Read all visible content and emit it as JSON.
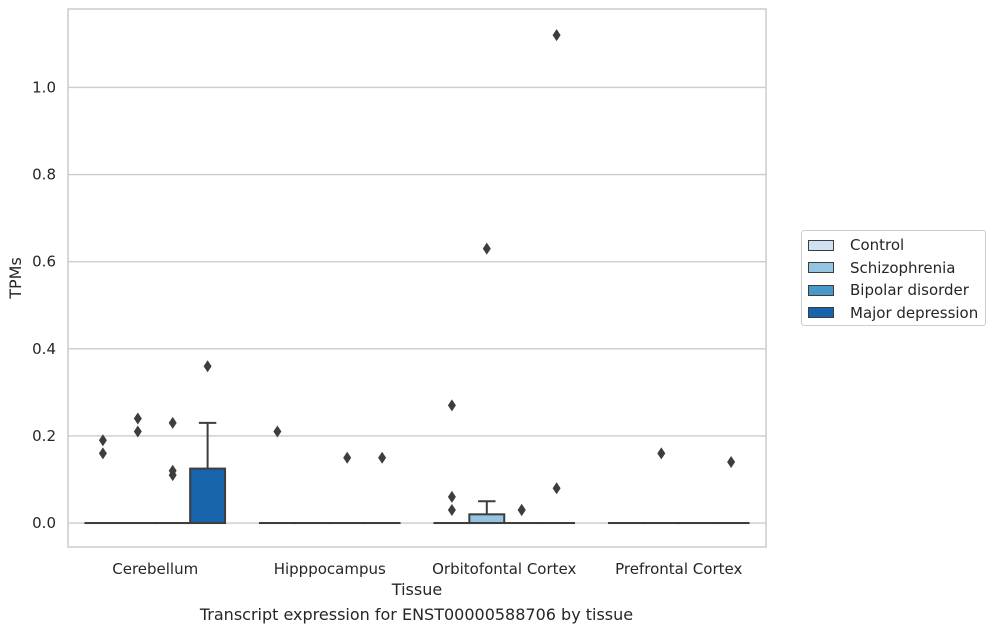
{
  "chart_data": {
    "type": "box",
    "xlabel": "Tissue",
    "ylabel": "TPMs",
    "caption": "Transcript expression for ENST00000588706 by tissue",
    "ylim": [
      -0.055,
      1.18
    ],
    "yticks": [
      0.0,
      0.2,
      0.4,
      0.6,
      0.8,
      1.0
    ],
    "ytick_labels": [
      "0.0",
      "0.2",
      "0.4",
      "0.6",
      "0.8",
      "1.0"
    ],
    "grid": "horizontal",
    "legend_position": "right",
    "categories": [
      "Cerebellum",
      "Hipppocampus",
      "Orbitofontal Cortex",
      "Prefrontal Cortex"
    ],
    "series": [
      {
        "name": "Control",
        "color": "#d0e1f2",
        "boxes": [
          {
            "category": "Cerebellum",
            "q1": 0.0,
            "median": 0.0,
            "q3": 0.0,
            "whisker_low": 0.0,
            "whisker_high": 0.0,
            "outliers": [
              0.19,
              0.16
            ]
          },
          {
            "category": "Hipppocampus",
            "q1": 0.0,
            "median": 0.0,
            "q3": 0.0,
            "whisker_low": 0.0,
            "whisker_high": 0.0,
            "outliers": [
              0.21
            ]
          },
          {
            "category": "Orbitofontal Cortex",
            "q1": 0.0,
            "median": 0.0,
            "q3": 0.0,
            "whisker_low": 0.0,
            "whisker_high": 0.0,
            "outliers": [
              0.27,
              0.06,
              0.03
            ]
          },
          {
            "category": "Prefrontal Cortex",
            "q1": 0.0,
            "median": 0.0,
            "q3": 0.0,
            "whisker_low": 0.0,
            "whisker_high": 0.0,
            "outliers": []
          }
        ]
      },
      {
        "name": "Schizophrenia",
        "color": "#94c4df",
        "boxes": [
          {
            "category": "Cerebellum",
            "q1": 0.0,
            "median": 0.0,
            "q3": 0.0,
            "whisker_low": 0.0,
            "whisker_high": 0.0,
            "outliers": [
              0.24,
              0.21
            ]
          },
          {
            "category": "Hipppocampus",
            "q1": 0.0,
            "median": 0.0,
            "q3": 0.0,
            "whisker_low": 0.0,
            "whisker_high": 0.0,
            "outliers": []
          },
          {
            "category": "Orbitofontal Cortex",
            "q1": 0.0,
            "median": 0.0,
            "q3": 0.02,
            "whisker_low": 0.0,
            "whisker_high": 0.05,
            "outliers": [
              0.63
            ]
          },
          {
            "category": "Prefrontal Cortex",
            "q1": 0.0,
            "median": 0.0,
            "q3": 0.0,
            "whisker_low": 0.0,
            "whisker_high": 0.0,
            "outliers": [
              0.16
            ]
          }
        ]
      },
      {
        "name": "Bipolar disorder",
        "color": "#4a98c9",
        "boxes": [
          {
            "category": "Cerebellum",
            "q1": 0.0,
            "median": 0.0,
            "q3": 0.0,
            "whisker_low": 0.0,
            "whisker_high": 0.0,
            "outliers": [
              0.23,
              0.12,
              0.11
            ]
          },
          {
            "category": "Hipppocampus",
            "q1": 0.0,
            "median": 0.0,
            "q3": 0.0,
            "whisker_low": 0.0,
            "whisker_high": 0.0,
            "outliers": [
              0.15
            ]
          },
          {
            "category": "Orbitofontal Cortex",
            "q1": 0.0,
            "median": 0.0,
            "q3": 0.0,
            "whisker_low": 0.0,
            "whisker_high": 0.0,
            "outliers": [
              0.03,
              0.03
            ]
          },
          {
            "category": "Prefrontal Cortex",
            "q1": 0.0,
            "median": 0.0,
            "q3": 0.0,
            "whisker_low": 0.0,
            "whisker_high": 0.0,
            "outliers": []
          }
        ]
      },
      {
        "name": "Major depression",
        "color": "#1764ab",
        "boxes": [
          {
            "category": "Cerebellum",
            "q1": 0.0,
            "median": 0.0,
            "q3": 0.125,
            "whisker_low": 0.0,
            "whisker_high": 0.23,
            "outliers": [
              0.36
            ]
          },
          {
            "category": "Hipppocampus",
            "q1": 0.0,
            "median": 0.0,
            "q3": 0.0,
            "whisker_low": 0.0,
            "whisker_high": 0.0,
            "outliers": [
              0.15
            ]
          },
          {
            "category": "Orbitofontal Cortex",
            "q1": 0.0,
            "median": 0.0,
            "q3": 0.0,
            "whisker_low": 0.0,
            "whisker_high": 0.0,
            "outliers": [
              1.12,
              0.08
            ]
          },
          {
            "category": "Prefrontal Cortex",
            "q1": 0.0,
            "median": 0.0,
            "q3": 0.0,
            "whisker_low": 0.0,
            "whisker_high": 0.0,
            "outliers": [
              0.14
            ]
          }
        ]
      }
    ]
  }
}
